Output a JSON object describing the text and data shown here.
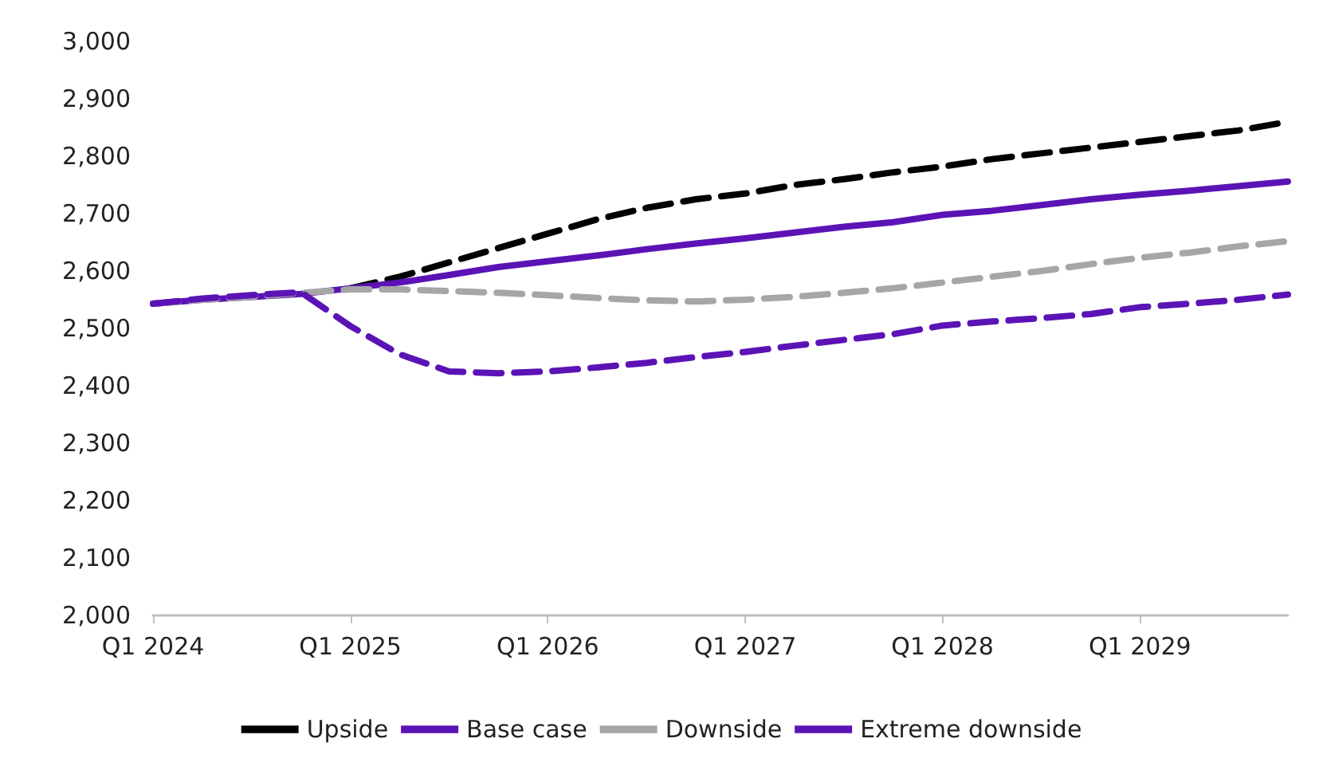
{
  "chart_data": {
    "type": "line",
    "categories": [
      "Q1 2024",
      null,
      null,
      null,
      "Q1 2025",
      null,
      null,
      null,
      "Q1 2026",
      null,
      null,
      null,
      "Q1 2027",
      null,
      null,
      null,
      "Q1 2028",
      null,
      null,
      null,
      "Q1 2029",
      null,
      null,
      null
    ],
    "ylim": [
      2000,
      3000
    ],
    "yticks": [
      {
        "value": 2000,
        "label": "2,000"
      },
      {
        "value": 2100,
        "label": "2,100"
      },
      {
        "value": 2200,
        "label": "2,200"
      },
      {
        "value": 2300,
        "label": "2,300"
      },
      {
        "value": 2400,
        "label": "2,400"
      },
      {
        "value": 2500,
        "label": "2,500"
      },
      {
        "value": 2600,
        "label": "2,600"
      },
      {
        "value": 2700,
        "label": "2,700"
      },
      {
        "value": 2800,
        "label": "2,800"
      },
      {
        "value": 2900,
        "label": "2,900"
      },
      {
        "value": 3000,
        "label": "3,000"
      }
    ],
    "grid": false,
    "legend": "bottom",
    "marker": "none",
    "series": [
      {
        "name": "Upside",
        "color": "#000000",
        "line_style": "dashed",
        "values": [
          null,
          null,
          null,
          null,
          2570,
          2590,
          2615,
          2640,
          2665,
          2690,
          2710,
          2725,
          2735,
          2750,
          2760,
          2772,
          2782,
          2795,
          2805,
          2815,
          2825,
          2835,
          2845,
          2860
        ]
      },
      {
        "name": "Base case",
        "color": "#5b13b5",
        "line_style": "solid",
        "values": [
          2543,
          2550,
          2555,
          2560,
          2570,
          2580,
          2593,
          2607,
          2617,
          2627,
          2638,
          2648,
          2657,
          2667,
          2677,
          2685,
          2698,
          2705,
          2715,
          2725,
          2733,
          2740,
          2748,
          2756
        ]
      },
      {
        "name": "Downside",
        "color": "#a6a6a6",
        "line_style": "dashed",
        "values": [
          2543,
          2550,
          2555,
          2562,
          2568,
          2568,
          2565,
          2562,
          2558,
          2553,
          2549,
          2547,
          2550,
          2555,
          2562,
          2570,
          2580,
          2590,
          2600,
          2612,
          2623,
          2632,
          2643,
          2652
        ]
      },
      {
        "name": "Extreme downside",
        "color": "#5b13b5",
        "line_style": "dashed",
        "values": [
          2543,
          2552,
          2558,
          2563,
          2504,
          2455,
          2425,
          2422,
          2425,
          2432,
          2440,
          2450,
          2459,
          2470,
          2480,
          2490,
          2505,
          2512,
          2518,
          2525,
          2537,
          2543,
          2550,
          2559
        ]
      }
    ]
  }
}
